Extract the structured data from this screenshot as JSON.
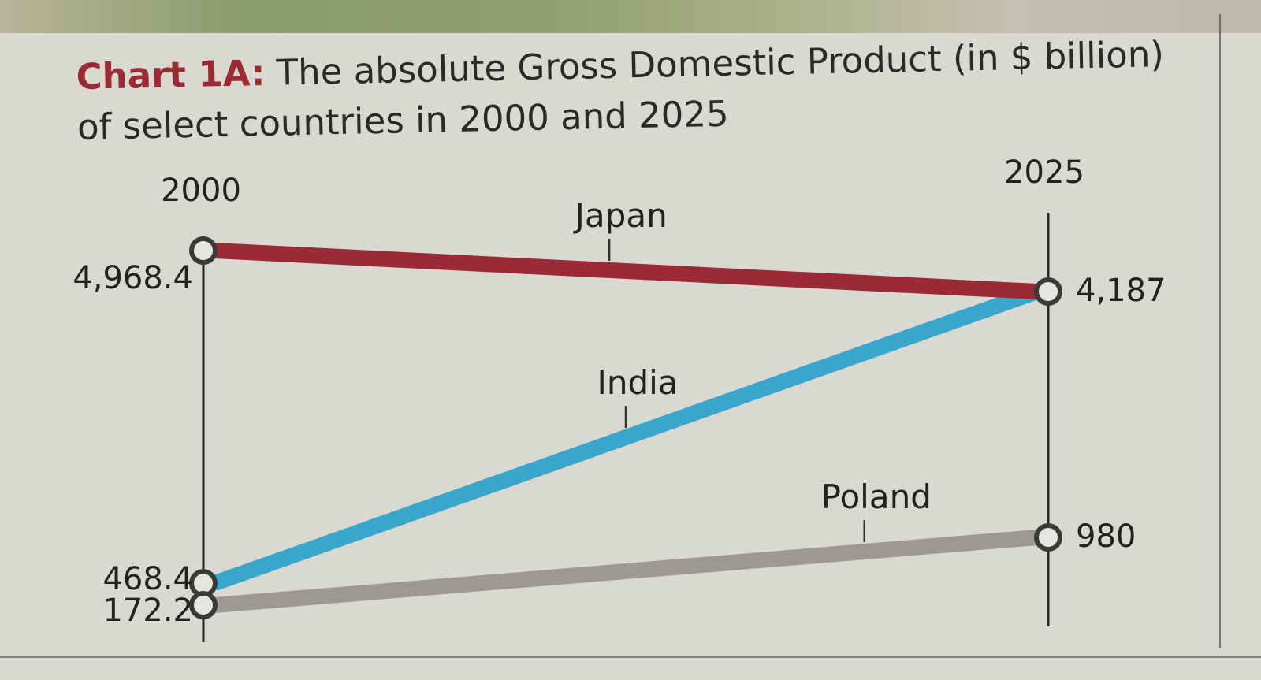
{
  "title": {
    "lead": "Chart 1A:",
    "text": "The absolute Gross Domestic Product (in $ billion)",
    "line2": "of select countries in 2000 and 2025"
  },
  "chart_data": {
    "type": "slope",
    "x": [
      "2000",
      "2025"
    ],
    "series": [
      {
        "name": "Japan",
        "values": [
          4968.4,
          4187
        ],
        "labels": [
          "4,968.4",
          "4,187"
        ],
        "color": "#9b2a36"
      },
      {
        "name": "India",
        "values": [
          468.4,
          4187
        ],
        "labels": [
          "468.4",
          "4,187"
        ],
        "color": "#3aa6cc"
      },
      {
        "name": "Poland",
        "values": [
          172.2,
          980
        ],
        "labels": [
          "172.2",
          "980"
        ],
        "color": "#9d9896"
      }
    ]
  }
}
